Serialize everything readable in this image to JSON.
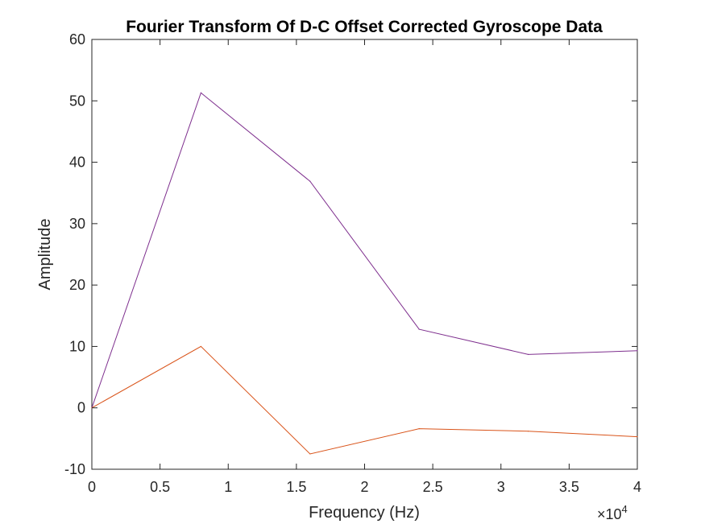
{
  "chart_data": {
    "type": "line",
    "title": "Fourier Transform Of D-C Offset Corrected Gyroscope Data",
    "xlabel": "Frequency (Hz)",
    "ylabel": "Amplitude",
    "x_exponent_label": {
      "base": "×10",
      "power": "4"
    },
    "xlim": [
      0,
      4
    ],
    "ylim": [
      -10,
      60
    ],
    "x_ticks": [
      0,
      0.5,
      1,
      1.5,
      2,
      2.5,
      3,
      3.5,
      4
    ],
    "x_tick_labels": [
      "0",
      "0.5",
      "1",
      "1.5",
      "2",
      "2.5",
      "3",
      "3.5",
      "4"
    ],
    "y_ticks": [
      -10,
      0,
      10,
      20,
      30,
      40,
      50,
      60
    ],
    "y_tick_labels": [
      "-10",
      "0",
      "10",
      "20",
      "30",
      "40",
      "50",
      "60"
    ],
    "grid": false,
    "x": [
      0,
      0.8,
      1.6,
      2.4,
      3.2,
      4.0
    ],
    "series": [
      {
        "color": "#7E2F8E",
        "values": [
          0,
          51.3,
          36.9,
          12.8,
          8.7,
          9.3
        ]
      },
      {
        "color": "#D95319",
        "values": [
          0,
          10.0,
          -7.5,
          -3.4,
          -3.8,
          -4.7
        ]
      }
    ]
  }
}
